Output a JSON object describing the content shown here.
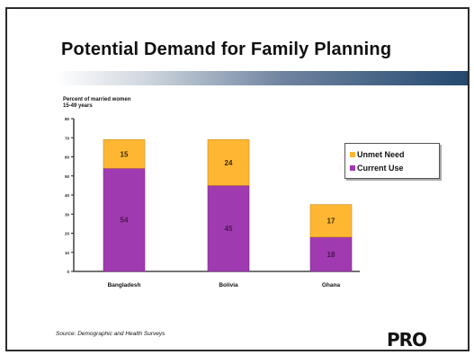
{
  "title": "Potential Demand for Family Planning",
  "source": "Source: Demographic and Health Surveys",
  "logo": "PRO",
  "colors": {
    "unmet_need": "#ffb733",
    "current_use": "#a03ab0",
    "axis": "#222222"
  },
  "chart_data": {
    "type": "bar",
    "stacked": true,
    "ylabel": "Percent of married women\n15-49 years",
    "xlabel": "",
    "ylim": [
      0,
      80
    ],
    "yticks": [
      0,
      10,
      20,
      30,
      40,
      50,
      60,
      70,
      80
    ],
    "categories": [
      "Bangladesh",
      "Bolivia",
      "Ghana"
    ],
    "series": [
      {
        "name": "Current Use",
        "values": [
          54,
          45,
          18
        ]
      },
      {
        "name": "Unmet Need",
        "values": [
          15,
          24,
          17
        ]
      }
    ],
    "legend": [
      "Unmet Need",
      "Current Use"
    ],
    "legend_position": "right",
    "grid": false
  }
}
